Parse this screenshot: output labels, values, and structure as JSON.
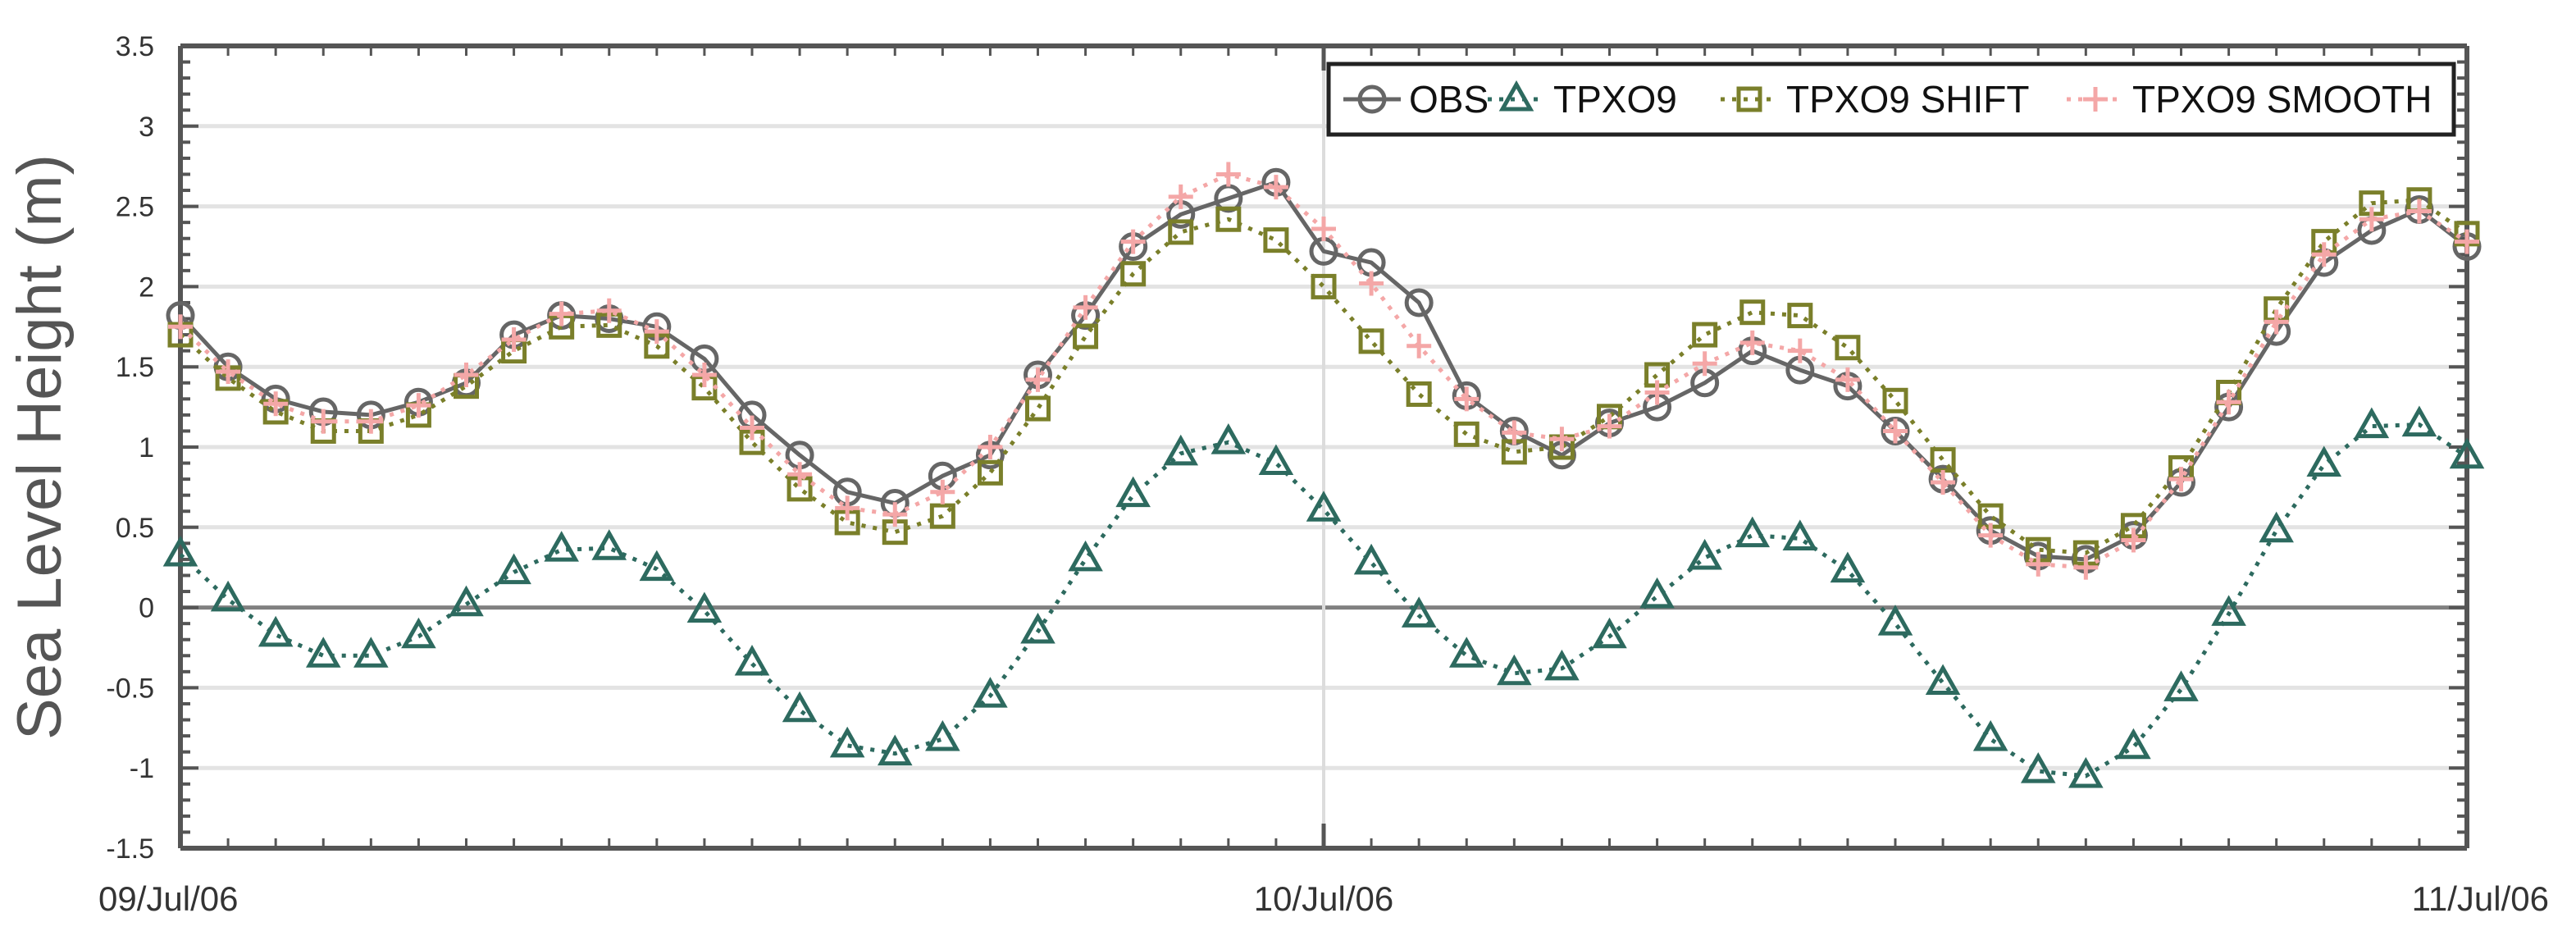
{
  "chart_data": {
    "type": "line",
    "title": "",
    "xlabel": "",
    "ylabel": "Sea Level Height (m)",
    "ylim": [
      -1.5,
      3.5
    ],
    "yticks": [
      "-1.5",
      "-1",
      "-0.5",
      "0",
      "0.5",
      "1",
      "1.5",
      "2",
      "2.5",
      "3",
      "3.5"
    ],
    "xlim": [
      "09/Jul/06 00:00",
      "11/Jul/06 00:00"
    ],
    "xticks": [
      "09/Jul/06",
      "10/Jul/06",
      "11/Jul/06"
    ],
    "grid": "horizontal",
    "legend_position": "top-right",
    "x_hours": [
      0,
      1,
      2,
      3,
      4,
      5,
      6,
      7,
      8,
      9,
      10,
      11,
      12,
      13,
      14,
      15,
      16,
      17,
      18,
      19,
      20,
      21,
      22,
      23,
      24,
      25,
      26,
      27,
      28,
      29,
      30,
      31,
      32,
      33,
      34,
      35,
      36,
      37,
      38,
      39,
      40,
      41,
      42,
      43,
      44,
      45,
      46,
      47,
      48
    ],
    "series": [
      {
        "name": "OBS",
        "color": "#666666",
        "marker": "circle",
        "line": "solid",
        "values": [
          1.82,
          1.5,
          1.3,
          1.22,
          1.2,
          1.28,
          1.4,
          1.7,
          1.82,
          1.8,
          1.75,
          1.55,
          1.2,
          0.95,
          0.72,
          0.65,
          0.82,
          0.95,
          1.45,
          1.82,
          2.25,
          2.45,
          2.55,
          2.65,
          2.22,
          2.15,
          1.9,
          1.32,
          1.1,
          0.95,
          1.15,
          1.25,
          1.4,
          1.6,
          1.48,
          1.38,
          1.1,
          0.8,
          0.48,
          0.32,
          0.3,
          0.45,
          0.78,
          1.25,
          1.72,
          2.15,
          2.35,
          2.48,
          2.25
        ]
      },
      {
        "name": "TPXO9",
        "color": "#2D6A5F",
        "marker": "triangle",
        "line": "dotted",
        "values": [
          0.33,
          0.05,
          -0.17,
          -0.3,
          -0.3,
          -0.18,
          0.02,
          0.22,
          0.36,
          0.37,
          0.24,
          -0.02,
          -0.35,
          -0.64,
          -0.86,
          -0.91,
          -0.82,
          -0.55,
          -0.15,
          0.3,
          0.7,
          0.96,
          1.03,
          0.9,
          0.61,
          0.28,
          -0.05,
          -0.3,
          -0.41,
          -0.38,
          -0.18,
          0.07,
          0.31,
          0.45,
          0.43,
          0.23,
          -0.1,
          -0.47,
          -0.82,
          -1.02,
          -1.05,
          -0.87,
          -0.51,
          -0.04,
          0.48,
          0.89,
          1.13,
          1.14,
          0.94
        ]
      },
      {
        "name": "TPXO9 SHIFT",
        "color": "#7A7F2A",
        "marker": "square",
        "line": "dotted",
        "values": [
          1.7,
          1.43,
          1.22,
          1.1,
          1.1,
          1.2,
          1.38,
          1.6,
          1.75,
          1.76,
          1.63,
          1.37,
          1.03,
          0.74,
          0.53,
          0.47,
          0.57,
          0.84,
          1.24,
          1.69,
          2.08,
          2.34,
          2.42,
          2.29,
          2.0,
          1.66,
          1.33,
          1.08,
          0.97,
          1.0,
          1.19,
          1.45,
          1.7,
          1.84,
          1.82,
          1.62,
          1.29,
          0.92,
          0.57,
          0.36,
          0.34,
          0.51,
          0.87,
          1.34,
          1.86,
          2.28,
          2.52,
          2.54,
          2.33
        ]
      },
      {
        "name": "TPXO9 SMOOTH",
        "color": "#F4A7A7",
        "marker": "plus",
        "line": "dotted",
        "values": [
          1.75,
          1.47,
          1.27,
          1.16,
          1.16,
          1.26,
          1.45,
          1.67,
          1.83,
          1.85,
          1.72,
          1.45,
          1.12,
          0.83,
          0.62,
          0.58,
          0.72,
          1.0,
          1.42,
          1.87,
          2.28,
          2.56,
          2.7,
          2.62,
          2.36,
          2.02,
          1.63,
          1.3,
          1.09,
          1.05,
          1.13,
          1.34,
          1.52,
          1.65,
          1.6,
          1.42,
          1.1,
          0.78,
          0.45,
          0.27,
          0.25,
          0.42,
          0.8,
          1.28,
          1.78,
          2.2,
          2.42,
          2.47,
          2.28
        ]
      }
    ]
  }
}
